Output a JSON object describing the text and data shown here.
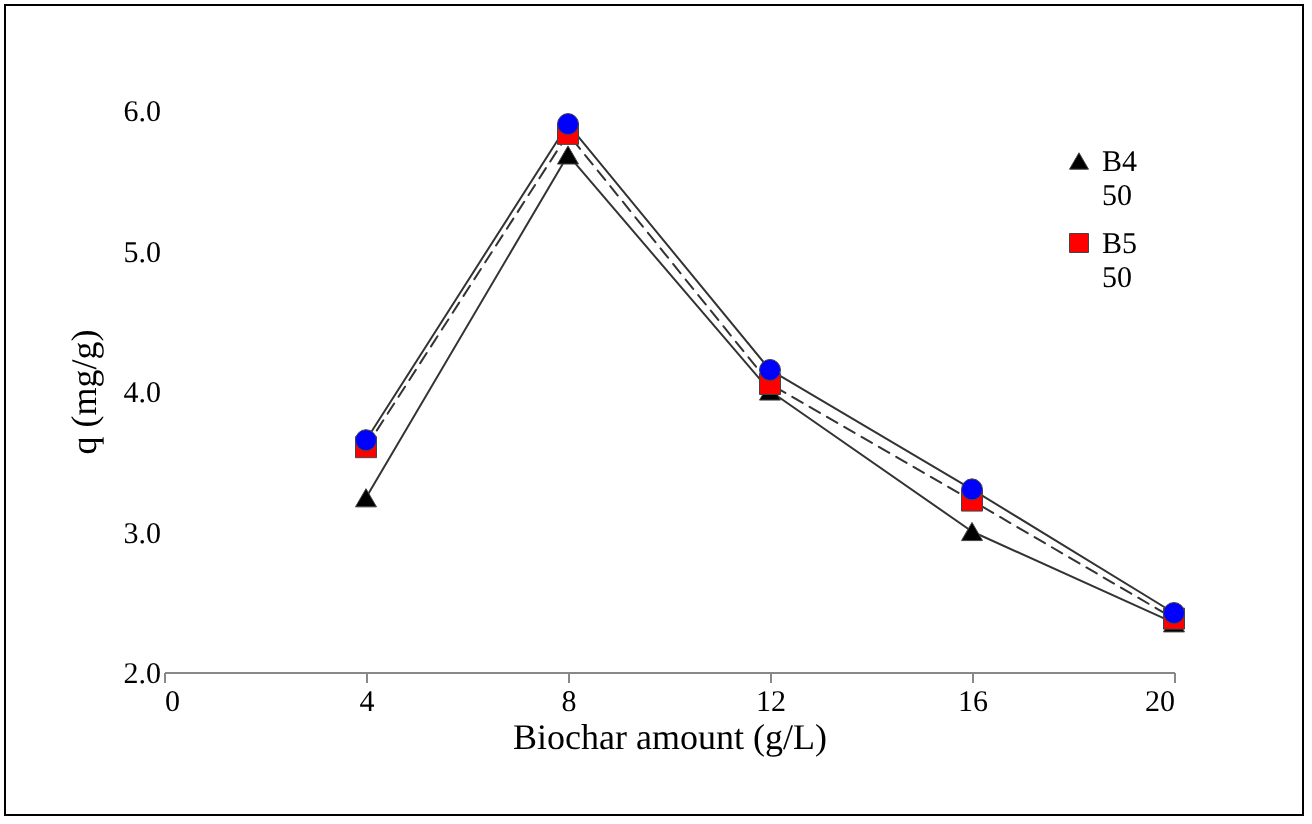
{
  "chart_data": {
    "type": "line",
    "xlabel": "Biochar amount (g/L)",
    "ylabel": "q (mg/g)",
    "x": [
      4,
      8,
      12,
      16,
      20
    ],
    "series": [
      {
        "name": "B4 50",
        "color": "#000000",
        "marker": "triangle",
        "line_style": "solid",
        "values": [
          3.24,
          5.68,
          4.0,
          3.0,
          2.35
        ]
      },
      {
        "name": "B5 50",
        "color": "#ff0000",
        "marker": "square",
        "line_style": "dashed",
        "values": [
          3.6,
          5.83,
          4.05,
          3.22,
          2.38
        ]
      },
      {
        "color": "#0000ff",
        "marker": "circle",
        "line_style": "solid",
        "values": [
          3.65,
          5.9,
          4.15,
          3.3,
          2.42
        ]
      }
    ],
    "xlim": [
      0,
      20
    ],
    "xticks": [
      0,
      4,
      8,
      12,
      16,
      20
    ],
    "ylim": [
      2.0,
      6.0
    ],
    "yticks": [
      {
        "value": 2,
        "label": "2.0"
      },
      {
        "value": 3,
        "label": "3.0"
      },
      {
        "value": 4,
        "label": "4.0"
      },
      {
        "value": 5,
        "label": "5.0"
      },
      {
        "value": 6,
        "label": "6.0"
      }
    ],
    "grid": false,
    "legend": "top right"
  }
}
